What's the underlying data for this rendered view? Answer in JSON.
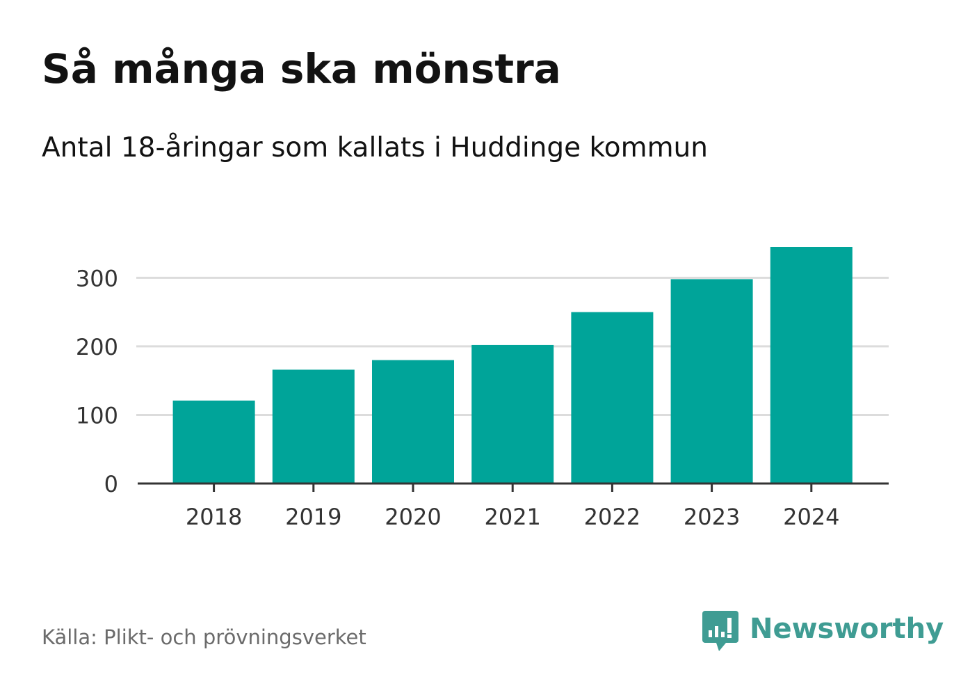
{
  "header": {
    "title": "Så många ska mönstra",
    "subtitle": "Antal 18-åringar som kallats i Huddinge kommun"
  },
  "footer": {
    "source": "Källa: Plikt- och prövningsverket",
    "brand": "Newsworthy",
    "brand_icon": "bar-chart-speech-bubble-icon"
  },
  "colors": {
    "bar": "#00a499",
    "grid": "#dcdcdc",
    "axis": "#333333",
    "tick_text": "#333333",
    "brand": "#3f9c93"
  },
  "chart_data": {
    "type": "bar",
    "title": "Så många ska mönstra",
    "subtitle": "Antal 18-åringar som kallats i Huddinge kommun",
    "categories": [
      "2018",
      "2019",
      "2020",
      "2021",
      "2022",
      "2023",
      "2024"
    ],
    "values": [
      121,
      166,
      180,
      202,
      250,
      298,
      345
    ],
    "yticks": [
      0,
      100,
      200,
      300
    ],
    "ylim": [
      0,
      345
    ],
    "xlabel": "",
    "ylabel": "",
    "grid": true,
    "legend": "none"
  }
}
